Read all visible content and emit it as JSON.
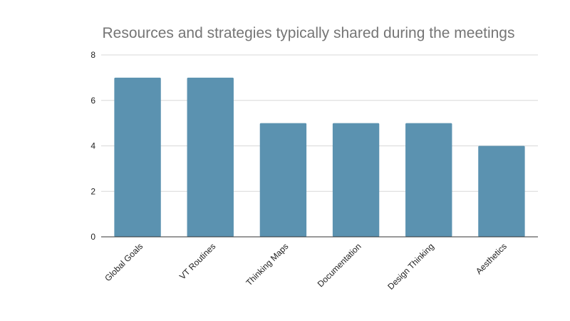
{
  "chart_data": {
    "type": "bar",
    "title": "Resources and strategies typically shared during the meetings",
    "xlabel": "",
    "ylabel": "",
    "categories": [
      "Global Goals",
      "VT Routines",
      "Thinking Maps",
      "Documentation",
      "Design Thinking",
      "Aesthetics"
    ],
    "values": [
      7,
      7,
      5,
      5,
      5,
      4
    ],
    "ylim": [
      0,
      8
    ],
    "yticks": [
      "0",
      "2",
      "4",
      "6",
      "8"
    ],
    "grid": true,
    "legend": "none",
    "bar_color": "#5b92b0"
  }
}
